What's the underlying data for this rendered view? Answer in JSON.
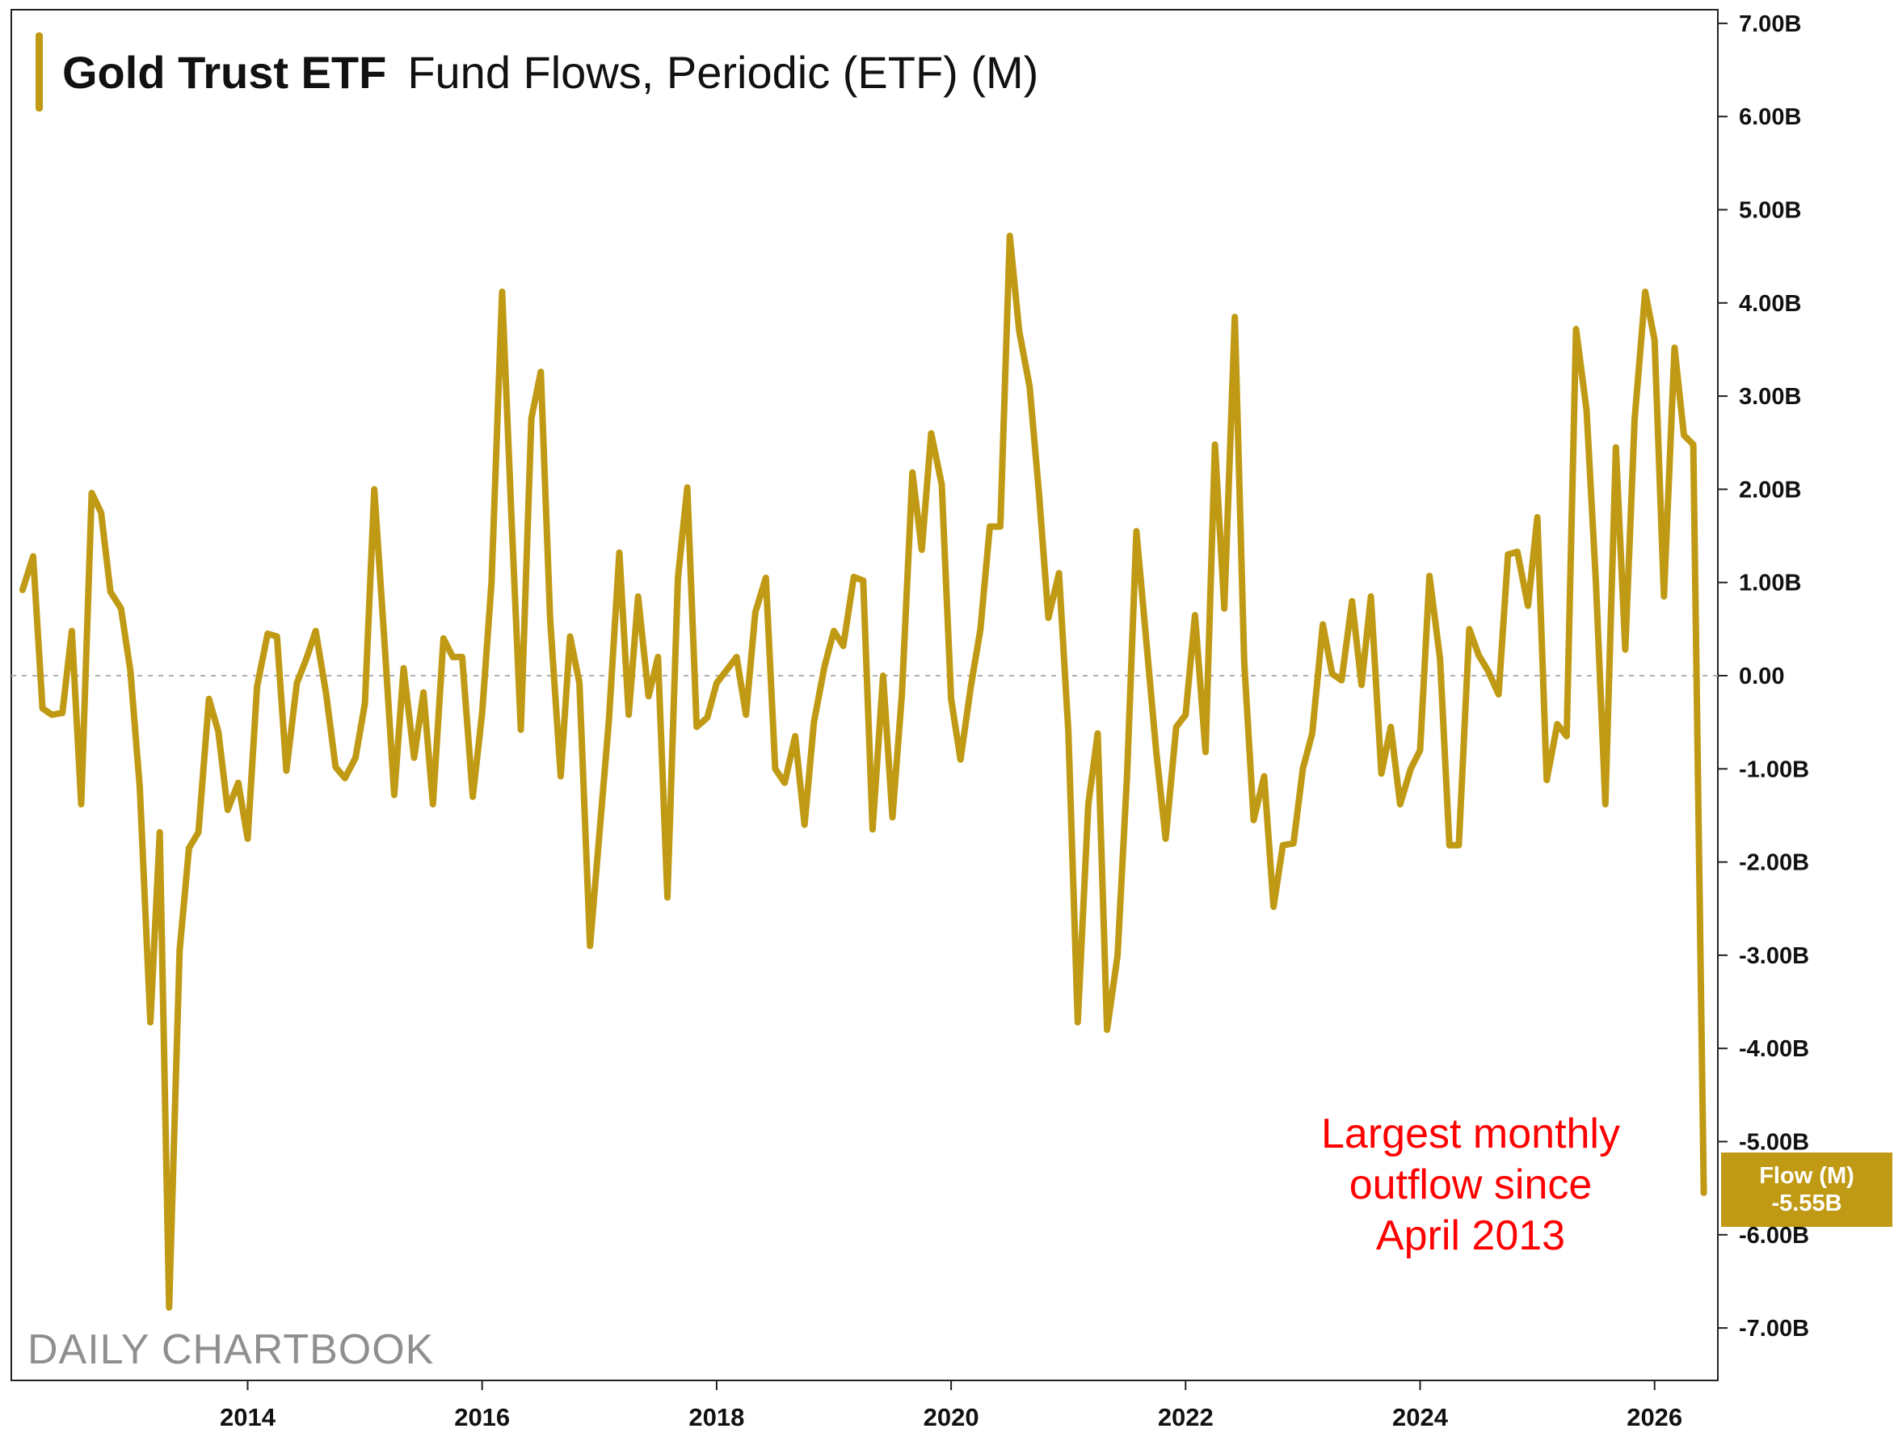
{
  "colors": {
    "line": "#C09A14",
    "annotation": "#ff0000",
    "axis": "#222222",
    "zero": "#b0b0b0"
  },
  "title": {
    "ticker": "Gold Trust ETF",
    "metric": "Fund Flows, Periodic (ETF) (M)"
  },
  "watermark": "DAILY CHARTBOOK",
  "annotation": [
    "Largest monthly",
    "outflow since",
    "April 2013"
  ],
  "last_value": {
    "label": "Flow (M)",
    "value": "-5.55B"
  },
  "chart_data": {
    "type": "line",
    "title": "Gold Trust ETF Fund Flows, Periodic (ETF) (M)",
    "xlabel": "",
    "ylabel": "",
    "x_range": [
      2012.0,
      2026.6
    ],
    "ylim": [
      -7.6,
      7.2
    ],
    "yticks": [
      7,
      6,
      5,
      4,
      3,
      2,
      1,
      0,
      -1,
      -2,
      -3,
      -4,
      -5,
      -6,
      -7
    ],
    "ytick_labels": [
      "7.00B",
      "6.00B",
      "5.00B",
      "4.00B",
      "3.00B",
      "2.00B",
      "1.00B",
      "0.00",
      "-1.00B",
      "-2.00B",
      "-3.00B",
      "-4.00B",
      "-5.00B",
      "-6.00B",
      "-7.00B"
    ],
    "xticks": [
      2014,
      2016,
      2018,
      2020,
      2022,
      2024,
      2026
    ],
    "xtick_labels": [
      "2014",
      "2016",
      "2018",
      "2020",
      "2022",
      "2024",
      "2026"
    ],
    "series": [
      {
        "name": "Flow (M)",
        "unit": "B USD",
        "values": [
          [
            2012.08,
            0.92
          ],
          [
            2012.17,
            1.28
          ],
          [
            2012.25,
            -0.35
          ],
          [
            2012.33,
            -0.42
          ],
          [
            2012.42,
            -0.4
          ],
          [
            2012.5,
            0.48
          ],
          [
            2012.58,
            -1.38
          ],
          [
            2012.67,
            1.96
          ],
          [
            2012.75,
            1.75
          ],
          [
            2012.83,
            0.9
          ],
          [
            2012.92,
            0.72
          ],
          [
            2013.0,
            0.05
          ],
          [
            2013.08,
            -1.2
          ],
          [
            2013.17,
            -3.72
          ],
          [
            2013.25,
            -1.68
          ],
          [
            2013.33,
            -6.78
          ],
          [
            2013.42,
            -2.95
          ],
          [
            2013.5,
            -1.85
          ],
          [
            2013.58,
            -1.68
          ],
          [
            2013.67,
            -0.25
          ],
          [
            2013.75,
            -0.6
          ],
          [
            2013.83,
            -1.44
          ],
          [
            2013.92,
            -1.15
          ],
          [
            2014.0,
            -1.75
          ],
          [
            2014.08,
            -0.12
          ],
          [
            2014.17,
            0.45
          ],
          [
            2014.25,
            0.42
          ],
          [
            2014.33,
            -1.02
          ],
          [
            2014.42,
            -0.08
          ],
          [
            2014.5,
            0.18
          ],
          [
            2014.58,
            0.48
          ],
          [
            2014.67,
            -0.2
          ],
          [
            2014.75,
            -0.98
          ],
          [
            2014.83,
            -1.1
          ],
          [
            2014.92,
            -0.88
          ],
          [
            2015.0,
            -0.3
          ],
          [
            2015.08,
            2.0
          ],
          [
            2015.17,
            0.3
          ],
          [
            2015.25,
            -1.28
          ],
          [
            2015.33,
            0.08
          ],
          [
            2015.42,
            -0.88
          ],
          [
            2015.5,
            -0.18
          ],
          [
            2015.58,
            -1.38
          ],
          [
            2015.67,
            0.4
          ],
          [
            2015.75,
            0.2
          ],
          [
            2015.83,
            0.2
          ],
          [
            2015.92,
            -1.3
          ],
          [
            2016.0,
            -0.4
          ],
          [
            2016.08,
            1.0
          ],
          [
            2016.17,
            4.12
          ],
          [
            2016.25,
            1.7
          ],
          [
            2016.33,
            -0.58
          ],
          [
            2016.42,
            2.76
          ],
          [
            2016.5,
            3.26
          ],
          [
            2016.58,
            0.6
          ],
          [
            2016.67,
            -1.08
          ],
          [
            2016.75,
            0.42
          ],
          [
            2016.83,
            -0.08
          ],
          [
            2016.92,
            -2.9
          ],
          [
            2017.0,
            -1.7
          ],
          [
            2017.08,
            -0.5
          ],
          [
            2017.17,
            1.32
          ],
          [
            2017.25,
            -0.42
          ],
          [
            2017.33,
            0.85
          ],
          [
            2017.42,
            -0.22
          ],
          [
            2017.5,
            0.2
          ],
          [
            2017.58,
            -2.38
          ],
          [
            2017.67,
            1.05
          ],
          [
            2017.75,
            2.02
          ],
          [
            2017.83,
            -0.55
          ],
          [
            2017.92,
            -0.45
          ],
          [
            2018.0,
            -0.08
          ],
          [
            2018.08,
            0.05
          ],
          [
            2018.17,
            0.2
          ],
          [
            2018.25,
            -0.42
          ],
          [
            2018.33,
            0.68
          ],
          [
            2018.42,
            1.05
          ],
          [
            2018.5,
            -1.0
          ],
          [
            2018.58,
            -1.15
          ],
          [
            2018.67,
            -0.65
          ],
          [
            2018.75,
            -1.6
          ],
          [
            2018.83,
            -0.5
          ],
          [
            2018.92,
            0.1
          ],
          [
            2019.0,
            0.48
          ],
          [
            2019.08,
            0.32
          ],
          [
            2019.17,
            1.06
          ],
          [
            2019.25,
            1.02
          ],
          [
            2019.33,
            -1.65
          ],
          [
            2019.42,
            0.0
          ],
          [
            2019.5,
            -1.52
          ],
          [
            2019.58,
            -0.2
          ],
          [
            2019.67,
            2.18
          ],
          [
            2019.75,
            1.35
          ],
          [
            2019.83,
            2.6
          ],
          [
            2019.92,
            2.05
          ],
          [
            2020.0,
            -0.25
          ],
          [
            2020.08,
            -0.9
          ],
          [
            2020.17,
            -0.1
          ],
          [
            2020.25,
            0.5
          ],
          [
            2020.33,
            1.6
          ],
          [
            2020.42,
            1.6
          ],
          [
            2020.5,
            4.72
          ],
          [
            2020.58,
            3.7
          ],
          [
            2020.67,
            3.1
          ],
          [
            2020.75,
            1.95
          ],
          [
            2020.83,
            0.62
          ],
          [
            2020.92,
            1.1
          ],
          [
            2021.0,
            -0.6
          ],
          [
            2021.08,
            -3.72
          ],
          [
            2021.17,
            -1.38
          ],
          [
            2021.25,
            -0.62
          ],
          [
            2021.33,
            -3.8
          ],
          [
            2021.42,
            -3.0
          ],
          [
            2021.5,
            -1.08
          ],
          [
            2021.58,
            1.55
          ],
          [
            2021.67,
            0.3
          ],
          [
            2021.75,
            -0.82
          ],
          [
            2021.83,
            -1.75
          ],
          [
            2021.92,
            -0.55
          ],
          [
            2022.0,
            -0.42
          ],
          [
            2022.08,
            0.65
          ],
          [
            2022.17,
            -0.82
          ],
          [
            2022.25,
            2.48
          ],
          [
            2022.33,
            0.72
          ],
          [
            2022.42,
            3.85
          ],
          [
            2022.5,
            0.15
          ],
          [
            2022.58,
            -1.55
          ],
          [
            2022.67,
            -1.08
          ],
          [
            2022.75,
            -2.48
          ],
          [
            2022.83,
            -1.82
          ],
          [
            2022.92,
            -1.8
          ],
          [
            2023.0,
            -1.0
          ],
          [
            2023.08,
            -0.62
          ],
          [
            2023.17,
            0.55
          ],
          [
            2023.25,
            0.02
          ],
          [
            2023.33,
            -0.05
          ],
          [
            2023.42,
            0.8
          ],
          [
            2023.5,
            -0.1
          ],
          [
            2023.58,
            0.85
          ],
          [
            2023.67,
            -1.05
          ],
          [
            2023.75,
            -0.55
          ],
          [
            2023.83,
            -1.38
          ],
          [
            2023.92,
            -1.0
          ],
          [
            2024.0,
            -0.8
          ],
          [
            2024.08,
            1.07
          ],
          [
            2024.17,
            0.18
          ],
          [
            2024.25,
            -1.82
          ],
          [
            2024.33,
            -1.82
          ],
          [
            2024.42,
            0.5
          ],
          [
            2024.5,
            0.22
          ],
          [
            2024.58,
            0.05
          ],
          [
            2024.67,
            -0.2
          ],
          [
            2024.75,
            1.3
          ],
          [
            2024.83,
            1.33
          ],
          [
            2024.92,
            0.75
          ],
          [
            2025.0,
            1.7
          ],
          [
            2025.08,
            -1.12
          ],
          [
            2025.17,
            -0.52
          ],
          [
            2025.25,
            -0.65
          ],
          [
            2025.33,
            3.72
          ],
          [
            2025.42,
            2.85
          ],
          [
            2025.5,
            1.0
          ],
          [
            2025.58,
            -1.38
          ],
          [
            2025.67,
            2.45
          ],
          [
            2025.75,
            0.28
          ],
          [
            2025.83,
            2.75
          ],
          [
            2025.92,
            4.12
          ],
          [
            2026.0,
            3.6
          ],
          [
            2026.08,
            0.85
          ],
          [
            2026.17,
            3.52
          ],
          [
            2026.25,
            2.58
          ],
          [
            2026.33,
            2.48
          ],
          [
            2026.42,
            -5.55
          ]
        ]
      }
    ]
  }
}
